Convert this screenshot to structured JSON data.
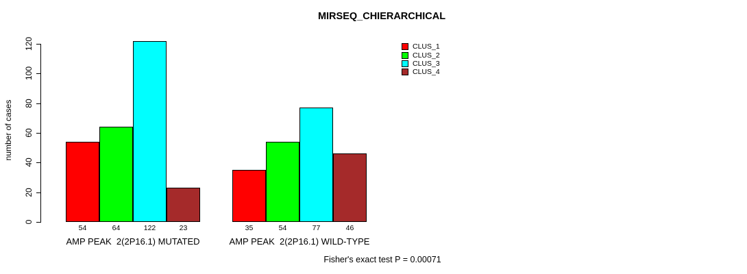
{
  "title": "MIRSEQ_CHIERARCHICAL",
  "footer": "Fisher's exact test P = 0.00071",
  "chart_data": {
    "type": "bar",
    "title": "MIRSEQ_CHIERARCHICAL",
    "xlabel": "",
    "ylabel": "number of cases",
    "ylim": [
      0,
      120
    ],
    "yticks": [
      0,
      20,
      40,
      60,
      80,
      100,
      120
    ],
    "grid": false,
    "legend_position": "top-right",
    "categories": [
      "AMP PEAK  2(2P16.1) MUTATED",
      "AMP PEAK  2(2P16.1) WILD-TYPE"
    ],
    "series": [
      {
        "name": "CLUS_1",
        "color": "#FF0000",
        "values": [
          54,
          35
        ]
      },
      {
        "name": "CLUS_2",
        "color": "#00FF00",
        "values": [
          64,
          54
        ]
      },
      {
        "name": "CLUS_3",
        "color": "#00FFFF",
        "values": [
          122,
          77
        ]
      },
      {
        "name": "CLUS_4",
        "color": "#A52A2A",
        "values": [
          23,
          46
        ]
      }
    ],
    "bar_value_labels": [
      [
        54,
        64,
        122,
        23
      ],
      [
        35,
        54,
        77,
        46
      ]
    ],
    "annotation": "Fisher's exact test P = 0.00071",
    "axis_color": "#000000",
    "background_color": "#FFFFFF"
  },
  "layout_note": ""
}
